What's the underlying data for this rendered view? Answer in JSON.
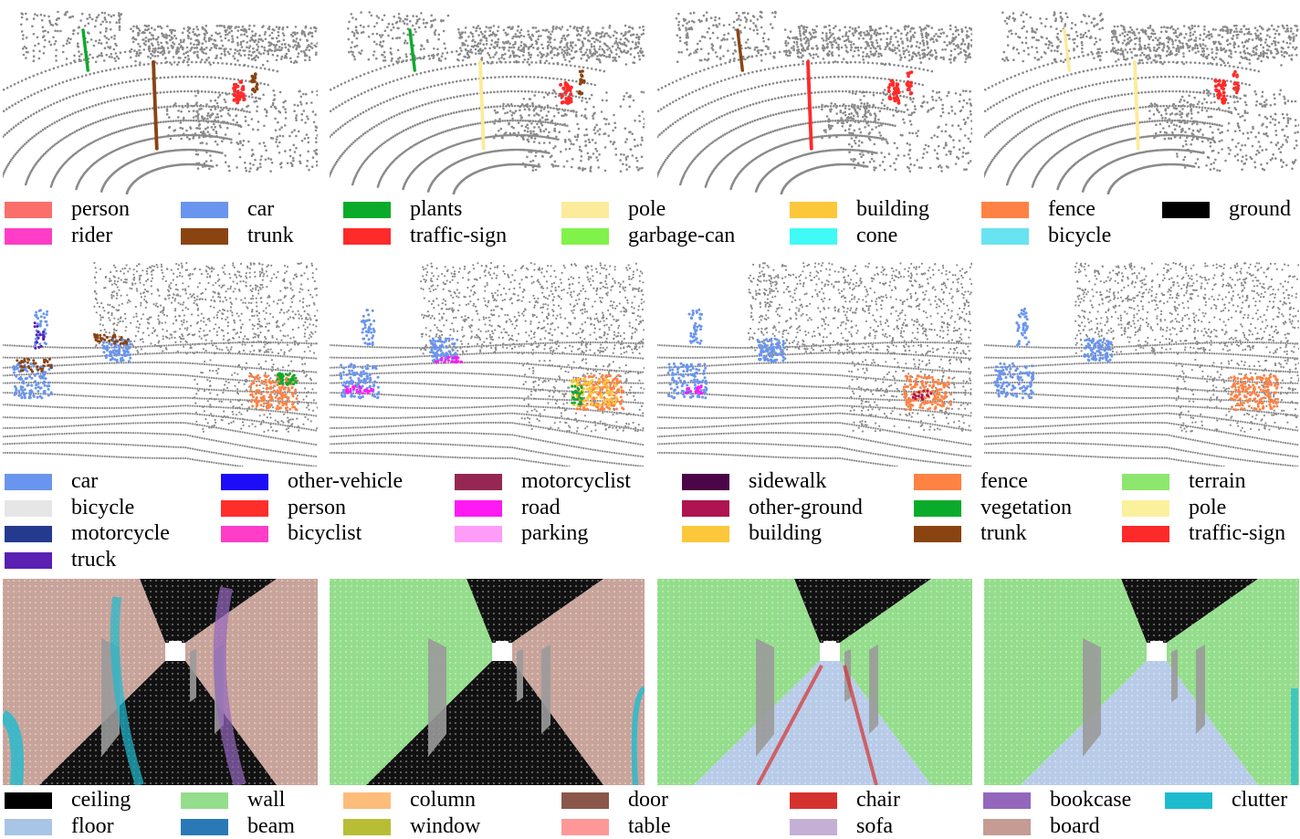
{
  "rows": [
    {
      "id": "row1",
      "scene": "outdoor-sparse",
      "legend": [
        {
          "label": "person",
          "color": "#fa6f6a"
        },
        {
          "label": "rider",
          "color": "#ff3dc7"
        },
        {
          "label": "car",
          "color": "#6a95ee"
        },
        {
          "label": "trunk",
          "color": "#8a4412"
        },
        {
          "label": "plants",
          "color": "#0aab2a"
        },
        {
          "label": "traffic-sign",
          "color": "#ff2a2a"
        },
        {
          "label": "pole",
          "color": "#fbeb9b"
        },
        {
          "label": "garbage-can",
          "color": "#80f24a"
        },
        {
          "label": "building",
          "color": "#fcc73a"
        },
        {
          "label": "cone",
          "color": "#3ffaf5"
        },
        {
          "label": "fence",
          "color": "#fe8244"
        },
        {
          "label": "bicycle",
          "color": "#68e3f1"
        },
        {
          "label": "ground",
          "color": "#000000"
        }
      ]
    },
    {
      "id": "row2",
      "scene": "outdoor-dense",
      "legend": [
        {
          "label": "car",
          "color": "#6a95ee"
        },
        {
          "label": "bicycle",
          "color": "#e6e6e6"
        },
        {
          "label": "motorcycle",
          "color": "#233a8f"
        },
        {
          "label": "truck",
          "color": "#5a1fb3"
        },
        {
          "label": "other-vehicle",
          "color": "#1d0cf6"
        },
        {
          "label": "person",
          "color": "#ff2e2a"
        },
        {
          "label": "bicyclist",
          "color": "#ff3dc7"
        },
        {
          "label": "motorcyclist",
          "color": "#952753"
        },
        {
          "label": "road",
          "color": "#ff1af4"
        },
        {
          "label": "parking",
          "color": "#ff9cf7"
        },
        {
          "label": "sidewalk",
          "color": "#4b0548"
        },
        {
          "label": "other-ground",
          "color": "#ad1450"
        },
        {
          "label": "building",
          "color": "#fcc73a"
        },
        {
          "label": "fence",
          "color": "#fe8244"
        },
        {
          "label": "vegetation",
          "color": "#0aab2a"
        },
        {
          "label": "trunk",
          "color": "#8a4412"
        },
        {
          "label": "terrain",
          "color": "#8de66d"
        },
        {
          "label": "pole",
          "color": "#fbf19d"
        },
        {
          "label": "traffic-sign",
          "color": "#fd2a2a"
        }
      ]
    },
    {
      "id": "row3",
      "scene": "indoor-corridor",
      "legend": [
        {
          "label": "ceiling",
          "color": "#000000"
        },
        {
          "label": "floor",
          "color": "#a8c4e6"
        },
        {
          "label": "wall",
          "color": "#94dd8c"
        },
        {
          "label": "beam",
          "color": "#2a79b6"
        },
        {
          "label": "column",
          "color": "#fdbc7a"
        },
        {
          "label": "window",
          "color": "#b8bd36"
        },
        {
          "label": "door",
          "color": "#8b574a"
        },
        {
          "label": "table",
          "color": "#fe9898"
        },
        {
          "label": "chair",
          "color": "#d5322f"
        },
        {
          "label": "sofa",
          "color": "#c5b0d5"
        },
        {
          "label": "bookcase",
          "color": "#9467bd"
        },
        {
          "label": "board",
          "color": "#c49c94"
        },
        {
          "label": "clutter",
          "color": "#1ebbcf"
        }
      ]
    }
  ],
  "colors": {
    "point_gray": "#8a8a8a",
    "wall_pink": "#c8a39a",
    "wall_green": "#94dd8c",
    "floor_blue": "#b8cbe8",
    "ceiling_black": "#111111",
    "door_gray": "#9a9a9a"
  }
}
